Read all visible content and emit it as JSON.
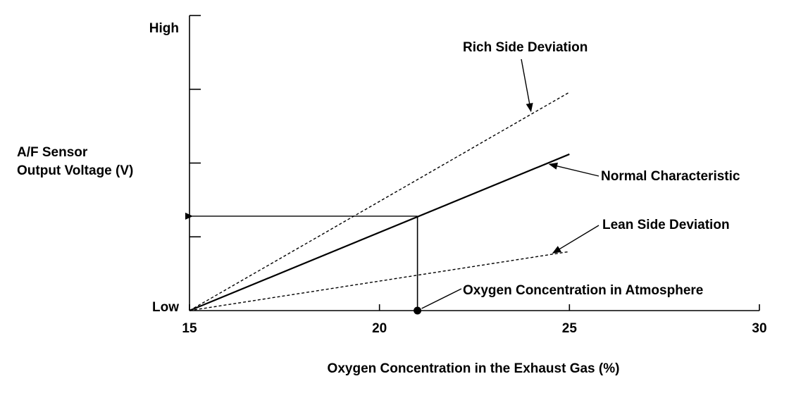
{
  "chart_data": {
    "type": "line",
    "title": "",
    "xlabel": "Oxygen Concentration in the Exhaust Gas (%)",
    "ylabel_lines": [
      "A/F Sensor",
      "Output Voltage (V)"
    ],
    "xlim": [
      15,
      30
    ],
    "ylim": [
      0,
      1
    ],
    "x_ticks": [
      15,
      20,
      25,
      30
    ],
    "x_tick_labels": [
      "15",
      "20",
      "25",
      "30"
    ],
    "y_minor_ticks": [
      0.25,
      0.5,
      0.75
    ],
    "y_tick_labels": {
      "high": "High",
      "low": "Low"
    },
    "grid": false,
    "series": [
      {
        "name": "Rich Side Deviation",
        "style": "dashed",
        "x": [
          15,
          25
        ],
        "y": [
          0,
          0.74
        ]
      },
      {
        "name": "Normal Characteristic",
        "style": "solid",
        "x": [
          15,
          25
        ],
        "y": [
          0,
          0.53
        ]
      },
      {
        "name": "Lean Side Deviation",
        "style": "dashed",
        "x": [
          15,
          25
        ],
        "y": [
          0,
          0.2
        ]
      }
    ],
    "marker_point": {
      "name": "Oxygen Concentration in Atmosphere",
      "x": 21,
      "y": 0
    },
    "reference": {
      "x": 21,
      "y": 0.32
    },
    "annotations": [
      {
        "text": "Rich Side Deviation",
        "target_series": 0
      },
      {
        "text": "Normal Characteristic",
        "target_series": 1
      },
      {
        "text": "Lean Side Deviation",
        "target_series": 2
      },
      {
        "text": "Oxygen Concentration in Atmosphere",
        "target": "marker_point"
      }
    ]
  }
}
